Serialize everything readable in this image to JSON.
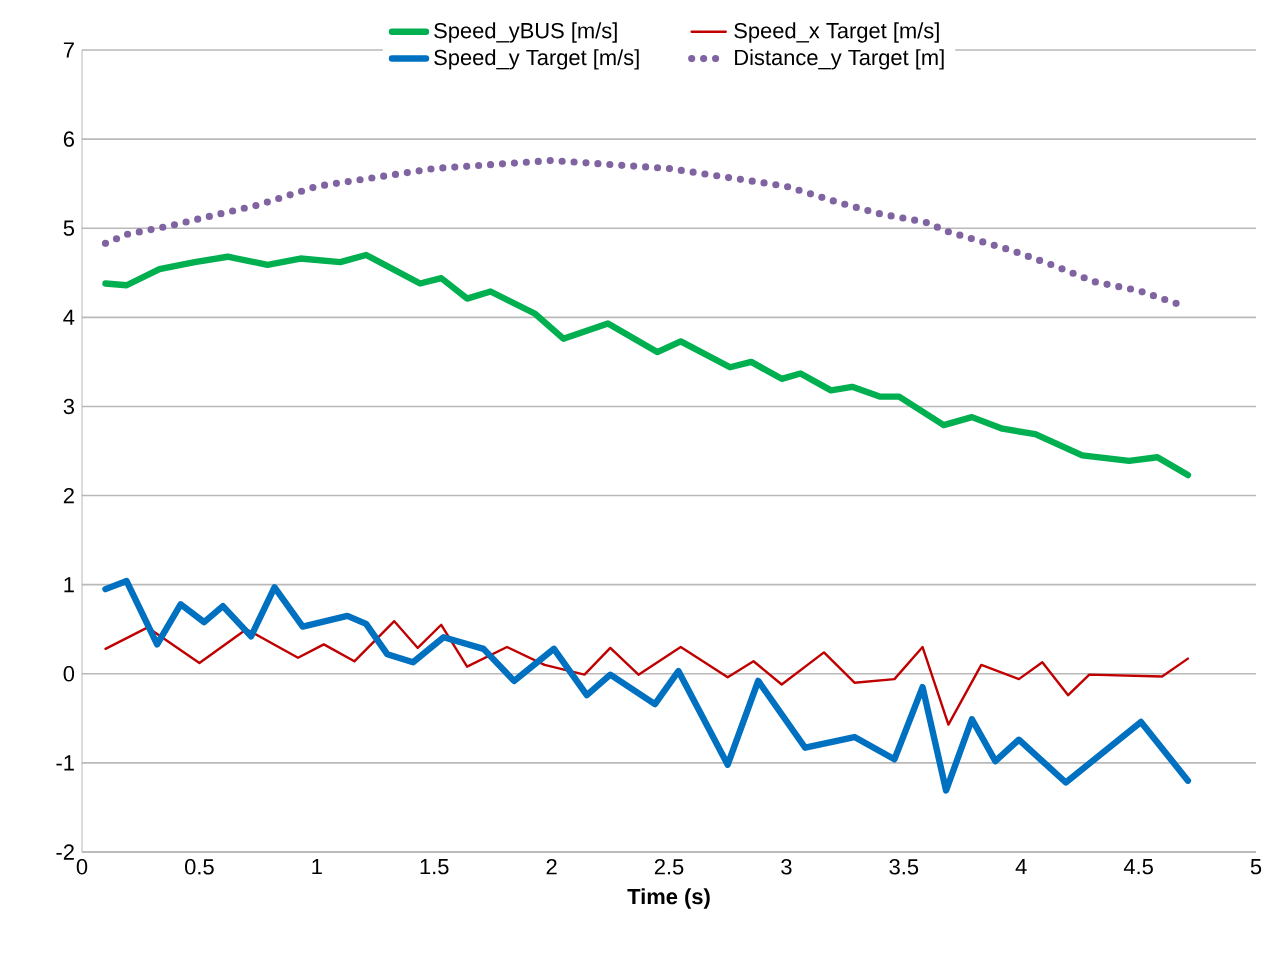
{
  "chart_data": {
    "type": "line",
    "xlabel": "Time (s)",
    "xlim": [
      0,
      5
    ],
    "ylim": [
      -2,
      7
    ],
    "xticks": [
      0,
      0.5,
      1,
      1.5,
      2,
      2.5,
      3,
      3.5,
      4,
      4.5,
      5
    ],
    "yticks": [
      -2,
      -1,
      0,
      1,
      2,
      3,
      4,
      5,
      6,
      7
    ],
    "grid": "y",
    "legend": "top",
    "line_style": "solid",
    "series": [
      {
        "name": "Speed_yBUS [m/s]",
        "color": "#00b050",
        "x": [
          0.1,
          0.19,
          0.33,
          0.48,
          0.62,
          0.79,
          0.93,
          1.1,
          1.21,
          1.44,
          1.53,
          1.64,
          1.74,
          1.93,
          2.05,
          2.24,
          2.45,
          2.55,
          2.76,
          2.85,
          2.98,
          3.06,
          3.19,
          3.28,
          3.4,
          3.48,
          3.67,
          3.79,
          3.92,
          4.06,
          4.26,
          4.46,
          4.58,
          4.71
        ],
        "values": [
          4.38,
          4.36,
          4.54,
          4.62,
          4.68,
          4.59,
          4.66,
          4.62,
          4.7,
          4.38,
          4.44,
          4.21,
          4.29,
          4.04,
          3.76,
          3.93,
          3.61,
          3.73,
          3.44,
          3.5,
          3.31,
          3.37,
          3.18,
          3.22,
          3.11,
          3.11,
          2.79,
          2.88,
          2.75,
          2.69,
          2.45,
          2.39,
          2.43,
          2.23
        ]
      },
      {
        "name": "Speed_x Target [m/s]",
        "color": "#c00000",
        "x": [
          0.1,
          0.28,
          0.5,
          0.7,
          0.92,
          1.03,
          1.16,
          1.33,
          1.43,
          1.53,
          1.64,
          1.81,
          1.97,
          2.14,
          2.25,
          2.37,
          2.55,
          2.75,
          2.86,
          2.98,
          3.16,
          3.29,
          3.46,
          3.58,
          3.69,
          3.83,
          3.99,
          4.09,
          4.2,
          4.29,
          4.6,
          4.71
        ],
        "values": [
          0.28,
          0.52,
          0.12,
          0.5,
          0.18,
          0.33,
          0.14,
          0.59,
          0.29,
          0.55,
          0.08,
          0.3,
          0.1,
          -0.01,
          0.29,
          -0.01,
          0.3,
          -0.04,
          0.14,
          -0.12,
          0.24,
          -0.1,
          -0.06,
          0.3,
          -0.57,
          0.1,
          -0.06,
          0.13,
          -0.24,
          -0.01,
          -0.03,
          0.17
        ]
      },
      {
        "name": "Speed_y Target [m/s]",
        "color": "#0070c0",
        "x": [
          0.1,
          0.19,
          0.32,
          0.42,
          0.52,
          0.6,
          0.72,
          0.82,
          0.94,
          1.13,
          1.21,
          1.3,
          1.41,
          1.54,
          1.71,
          1.84,
          2.01,
          2.15,
          2.25,
          2.44,
          2.54,
          2.75,
          2.88,
          3.08,
          3.29,
          3.46,
          3.58,
          3.68,
          3.79,
          3.89,
          3.99,
          4.19,
          4.51,
          4.71
        ],
        "values": [
          0.95,
          1.04,
          0.33,
          0.78,
          0.58,
          0.76,
          0.42,
          0.97,
          0.53,
          0.65,
          0.56,
          0.22,
          0.13,
          0.41,
          0.28,
          -0.08,
          0.28,
          -0.24,
          -0.01,
          -0.34,
          0.03,
          -1.02,
          -0.08,
          -0.83,
          -0.71,
          -0.96,
          -0.15,
          -1.31,
          -0.51,
          -0.98,
          -0.74,
          -1.22,
          -0.54,
          -1.2
        ]
      },
      {
        "name": "Distance_y Target [m]",
        "color": "#8064a2",
        "line_style": "dotted",
        "x": [
          0.1,
          0.19,
          0.38,
          0.57,
          0.75,
          1.0,
          1.5,
          2.0,
          2.5,
          3.0,
          3.22,
          3.4,
          3.59,
          3.69,
          3.96,
          4.14,
          4.31,
          4.5,
          4.69
        ],
        "values": [
          4.83,
          4.93,
          5.03,
          5.15,
          5.26,
          5.47,
          5.67,
          5.76,
          5.67,
          5.47,
          5.29,
          5.16,
          5.07,
          4.96,
          4.75,
          4.58,
          4.4,
          4.3,
          4.13
        ]
      }
    ]
  }
}
